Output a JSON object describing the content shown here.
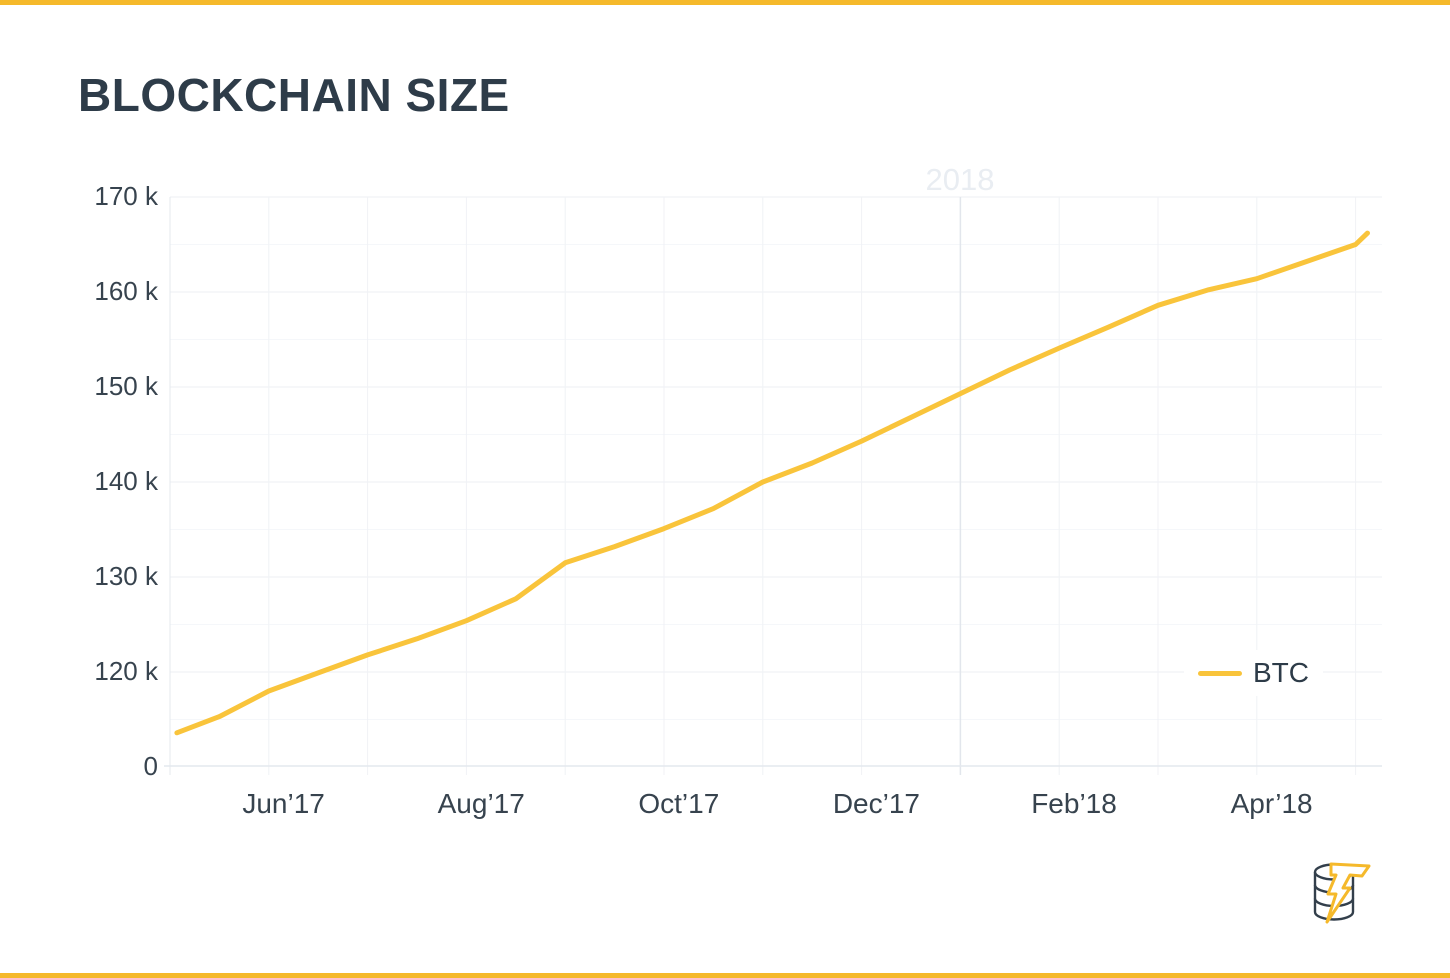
{
  "header": {
    "title": "BLOCKCHAIN SIZE"
  },
  "theme": {
    "accent": "#F5B92B",
    "line_color": "#F9C43B",
    "title_color": "#2E3C49",
    "tick_color": "#37434E",
    "grid_major": "#EDEFF3",
    "grid_minor": "#F5F7FA",
    "grid_vertical": "#F0F2F6",
    "axis_color": "#E4E8EE",
    "year_line_color": "#E2E6EC",
    "year_label_color": "#E9EDF2",
    "legend_text_color": "#2D3B48",
    "logo_dark": "#333F4B"
  },
  "legend": {
    "label": "BTC"
  },
  "chart_data": {
    "type": "line",
    "title": "BLOCKCHAIN SIZE",
    "year_label": "2018",
    "x_range": [
      "May 2017",
      "May 2018"
    ],
    "x_tick_labels": [
      "Jun’17",
      "Aug’17",
      "Oct’17",
      "Dec’17",
      "Feb’18",
      "Apr’18"
    ],
    "y_tick_labels": [
      "170 k",
      "160 k",
      "150 k",
      "140 k",
      "130 k",
      "120 k",
      "0"
    ],
    "ylabel": "",
    "xlabel": "",
    "y_axis": {
      "unit_suffix": "k",
      "major_ticks": [
        170,
        160,
        150,
        140,
        130,
        120
      ],
      "minor_gridlines_every": 5,
      "zero_label": "0",
      "visible_value_range": [
        110,
        170
      ]
    },
    "grid": true,
    "legend_position": "right-middle",
    "series": [
      {
        "name": "BTC",
        "color": "#F9C43B",
        "points": [
          {
            "m": 0.07,
            "date": "2017-05-03",
            "v": 113.6
          },
          {
            "m": 0.5,
            "date": "2017-05-16",
            "v": 115.3
          },
          {
            "m": 1.0,
            "date": "2017-06-01",
            "v": 118.0
          },
          {
            "m": 1.5,
            "date": "2017-06-16",
            "v": 119.9
          },
          {
            "m": 2.0,
            "date": "2017-07-01",
            "v": 121.8
          },
          {
            "m": 2.5,
            "date": "2017-07-16",
            "v": 123.5
          },
          {
            "m": 3.0,
            "date": "2017-08-01",
            "v": 125.4
          },
          {
            "m": 3.5,
            "date": "2017-08-16",
            "v": 127.7
          },
          {
            "m": 4.0,
            "date": "2017-09-01",
            "v": 131.5
          },
          {
            "m": 4.5,
            "date": "2017-09-16",
            "v": 133.2
          },
          {
            "m": 5.0,
            "date": "2017-10-01",
            "v": 135.1
          },
          {
            "m": 5.5,
            "date": "2017-10-16",
            "v": 137.2
          },
          {
            "m": 6.0,
            "date": "2017-11-01",
            "v": 140.0
          },
          {
            "m": 6.5,
            "date": "2017-11-16",
            "v": 142.0
          },
          {
            "m": 7.0,
            "date": "2017-12-01",
            "v": 144.3
          },
          {
            "m": 7.5,
            "date": "2017-12-16",
            "v": 146.8
          },
          {
            "m": 8.0,
            "date": "2018-01-01",
            "v": 149.3
          },
          {
            "m": 8.5,
            "date": "2018-01-16",
            "v": 151.8
          },
          {
            "m": 9.0,
            "date": "2018-02-01",
            "v": 154.1
          },
          {
            "m": 9.5,
            "date": "2018-02-15",
            "v": 156.3
          },
          {
            "m": 10.0,
            "date": "2018-03-01",
            "v": 158.6
          },
          {
            "m": 10.5,
            "date": "2018-03-16",
            "v": 160.2
          },
          {
            "m": 11.0,
            "date": "2018-04-01",
            "v": 161.4
          },
          {
            "m": 11.5,
            "date": "2018-04-16",
            "v": 163.2
          },
          {
            "m": 12.0,
            "date": "2018-05-01",
            "v": 165.0
          },
          {
            "m": 12.12,
            "date": "2018-05-05",
            "v": 166.2
          }
        ]
      }
    ]
  }
}
